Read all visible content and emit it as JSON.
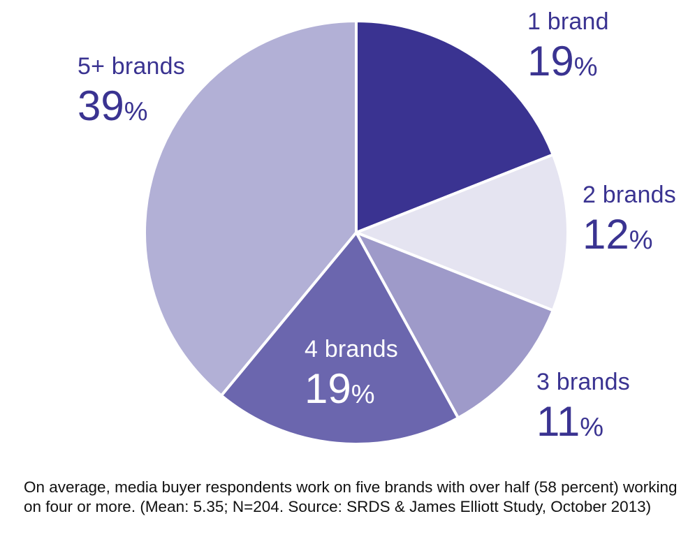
{
  "chart_data": {
    "type": "pie",
    "slices": [
      {
        "label": "1 brand",
        "value": 19,
        "pct_number": "19",
        "pct_sign": "%",
        "color": "#3a3391"
      },
      {
        "label": "2 brands",
        "value": 12,
        "pct_number": "12",
        "pct_sign": "%",
        "color": "#e5e4f1"
      },
      {
        "label": "3 brands",
        "value": 11,
        "pct_number": "11",
        "pct_sign": "%",
        "color": "#9e9ac9"
      },
      {
        "label": "4 brands",
        "value": 19,
        "pct_number": "19",
        "pct_sign": "%",
        "color": "#6b66ae"
      },
      {
        "label": "5+ brands",
        "value": 39,
        "pct_number": "39",
        "pct_sign": "%",
        "color": "#b2b0d6"
      }
    ],
    "start_angle": "12 o'clock",
    "direction": "clockwise"
  },
  "caption": "On average, media buyer respondents work on five brands with over half (58 percent) working on four or more. (Mean: 5.35; N=204. Source: SRDS & James Elliott Study, October 2013)"
}
